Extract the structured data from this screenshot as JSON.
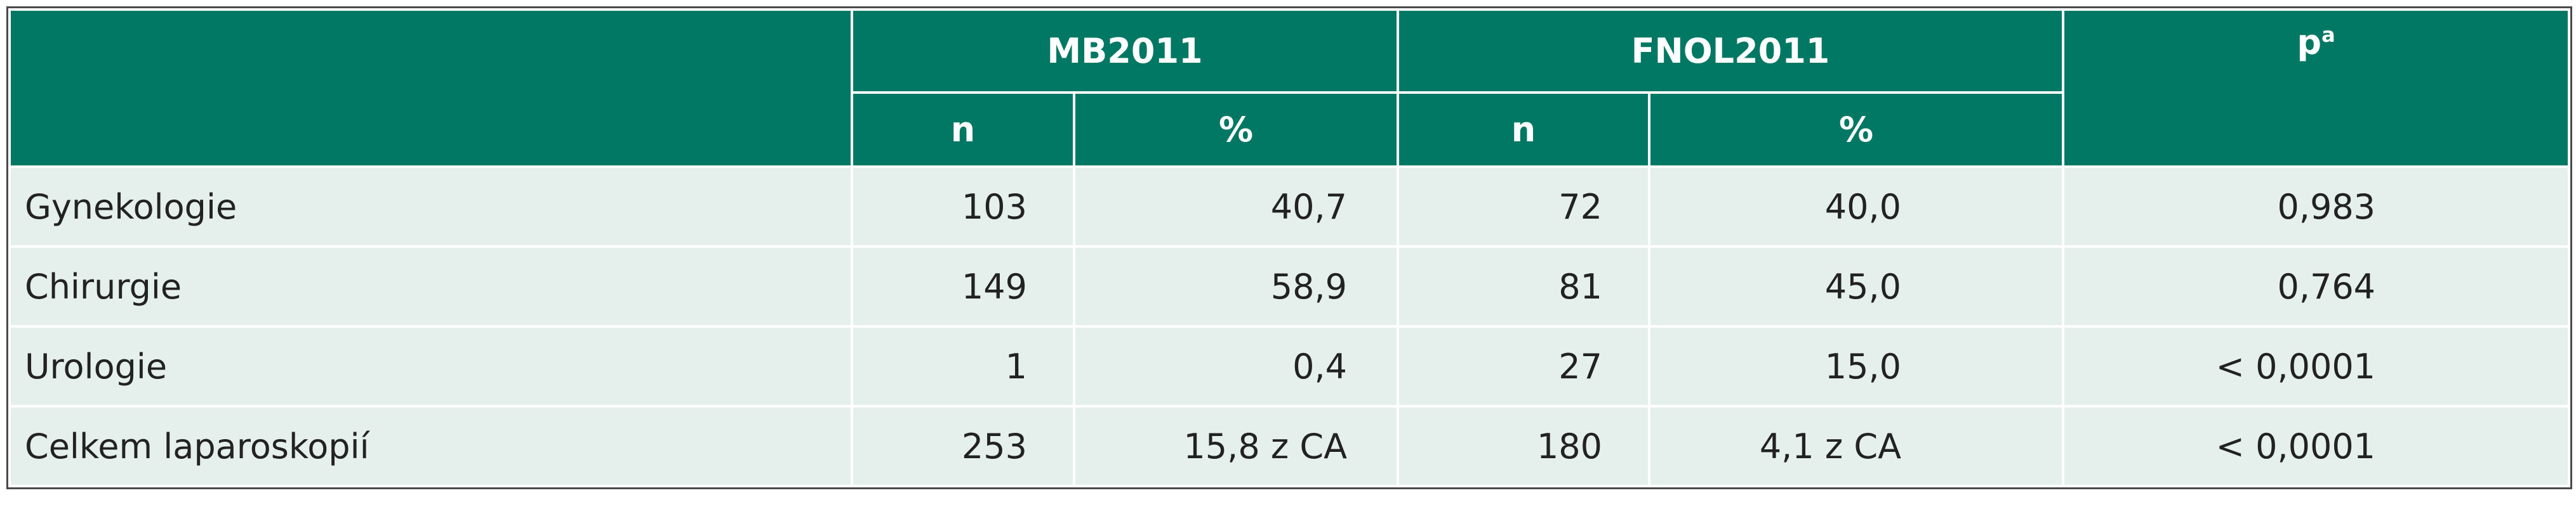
{
  "table": {
    "header": {
      "groups": [
        "MB2011",
        "FNOL2011"
      ],
      "p": "p",
      "p_sup": "a",
      "sub": [
        "n",
        "%",
        "n",
        "%"
      ]
    },
    "rows": [
      [
        "Gynekologie",
        "103",
        "40,7",
        "72",
        "40,0",
        "0,983"
      ],
      [
        "Chirurgie",
        "149",
        "58,9",
        "81",
        "45,0",
        "0,764"
      ],
      [
        "Urologie",
        "1",
        "0,4",
        "27",
        "15,0",
        "< 0,0001"
      ],
      [
        "Celkem laparoskopií",
        "253",
        "15,8 z CA",
        "180",
        "4,1 z CA",
        "< 0,0001"
      ]
    ]
  }
}
